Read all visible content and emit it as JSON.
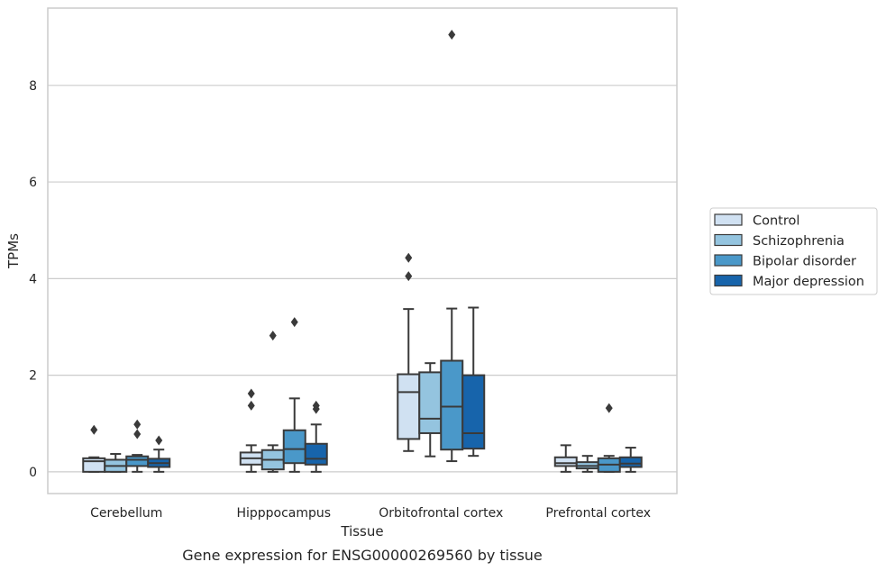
{
  "caption": "Gene expression for ENSG00000269560 by tissue",
  "chart_data": {
    "type": "box",
    "xlabel": "Tissue",
    "ylabel": "TPMs",
    "ylim": [
      -0.45,
      9.6
    ],
    "yticks": [
      0,
      2,
      4,
      6,
      8
    ],
    "grid": "horizontal",
    "legend_position": "right",
    "categories": [
      "Cerebellum",
      "Hipppocampus",
      "Orbitofrontal cortex",
      "Prefrontal cortex"
    ],
    "series": [
      {
        "name": "Control",
        "color": "#d0e1f2",
        "boxes": [
          {
            "min": 0.0,
            "q1": 0.0,
            "median": 0.22,
            "q3": 0.28,
            "max": 0.3,
            "outliers": [
              0.87
            ]
          },
          {
            "min": 0.0,
            "q1": 0.15,
            "median": 0.28,
            "q3": 0.4,
            "max": 0.55,
            "outliers": [
              1.37,
              1.62
            ]
          },
          {
            "min": 0.43,
            "q1": 0.68,
            "median": 1.65,
            "q3": 2.02,
            "max": 3.37,
            "outliers": [
              4.05,
              4.43
            ]
          },
          {
            "min": 0.0,
            "q1": 0.12,
            "median": 0.18,
            "q3": 0.3,
            "max": 0.55,
            "outliers": []
          }
        ]
      },
      {
        "name": "Schizophrenia",
        "color": "#94c4df",
        "boxes": [
          {
            "min": 0.0,
            "q1": 0.0,
            "median": 0.12,
            "q3": 0.25,
            "max": 0.37,
            "outliers": []
          },
          {
            "min": 0.0,
            "q1": 0.05,
            "median": 0.25,
            "q3": 0.45,
            "max": 0.55,
            "outliers": [
              2.82
            ]
          },
          {
            "min": 0.32,
            "q1": 0.8,
            "median": 1.1,
            "q3": 2.06,
            "max": 2.25,
            "outliers": []
          },
          {
            "min": 0.0,
            "q1": 0.07,
            "median": 0.12,
            "q3": 0.2,
            "max": 0.33,
            "outliers": []
          }
        ]
      },
      {
        "name": "Bipolar disorder",
        "color": "#4a98c9",
        "boxes": [
          {
            "min": 0.0,
            "q1": 0.12,
            "median": 0.25,
            "q3": 0.32,
            "max": 0.35,
            "outliers": [
              0.78,
              0.98
            ]
          },
          {
            "min": 0.0,
            "q1": 0.18,
            "median": 0.47,
            "q3": 0.86,
            "max": 1.52,
            "outliers": [
              3.1
            ]
          },
          {
            "min": 0.22,
            "q1": 0.46,
            "median": 1.35,
            "q3": 2.3,
            "max": 3.38,
            "outliers": [
              9.05
            ]
          },
          {
            "min": 0.0,
            "q1": 0.0,
            "median": 0.15,
            "q3": 0.28,
            "max": 0.33,
            "outliers": [
              1.32
            ]
          }
        ]
      },
      {
        "name": "Major depression",
        "color": "#1764ab",
        "boxes": [
          {
            "min": 0.0,
            "q1": 0.1,
            "median": 0.18,
            "q3": 0.27,
            "max": 0.46,
            "outliers": [
              0.65
            ]
          },
          {
            "min": 0.0,
            "q1": 0.15,
            "median": 0.27,
            "q3": 0.58,
            "max": 0.98,
            "outliers": [
              1.3,
              1.37
            ]
          },
          {
            "min": 0.33,
            "q1": 0.48,
            "median": 0.8,
            "q3": 2.0,
            "max": 3.4,
            "outliers": []
          },
          {
            "min": 0.0,
            "q1": 0.1,
            "median": 0.17,
            "q3": 0.3,
            "max": 0.5,
            "outliers": []
          }
        ]
      }
    ]
  }
}
